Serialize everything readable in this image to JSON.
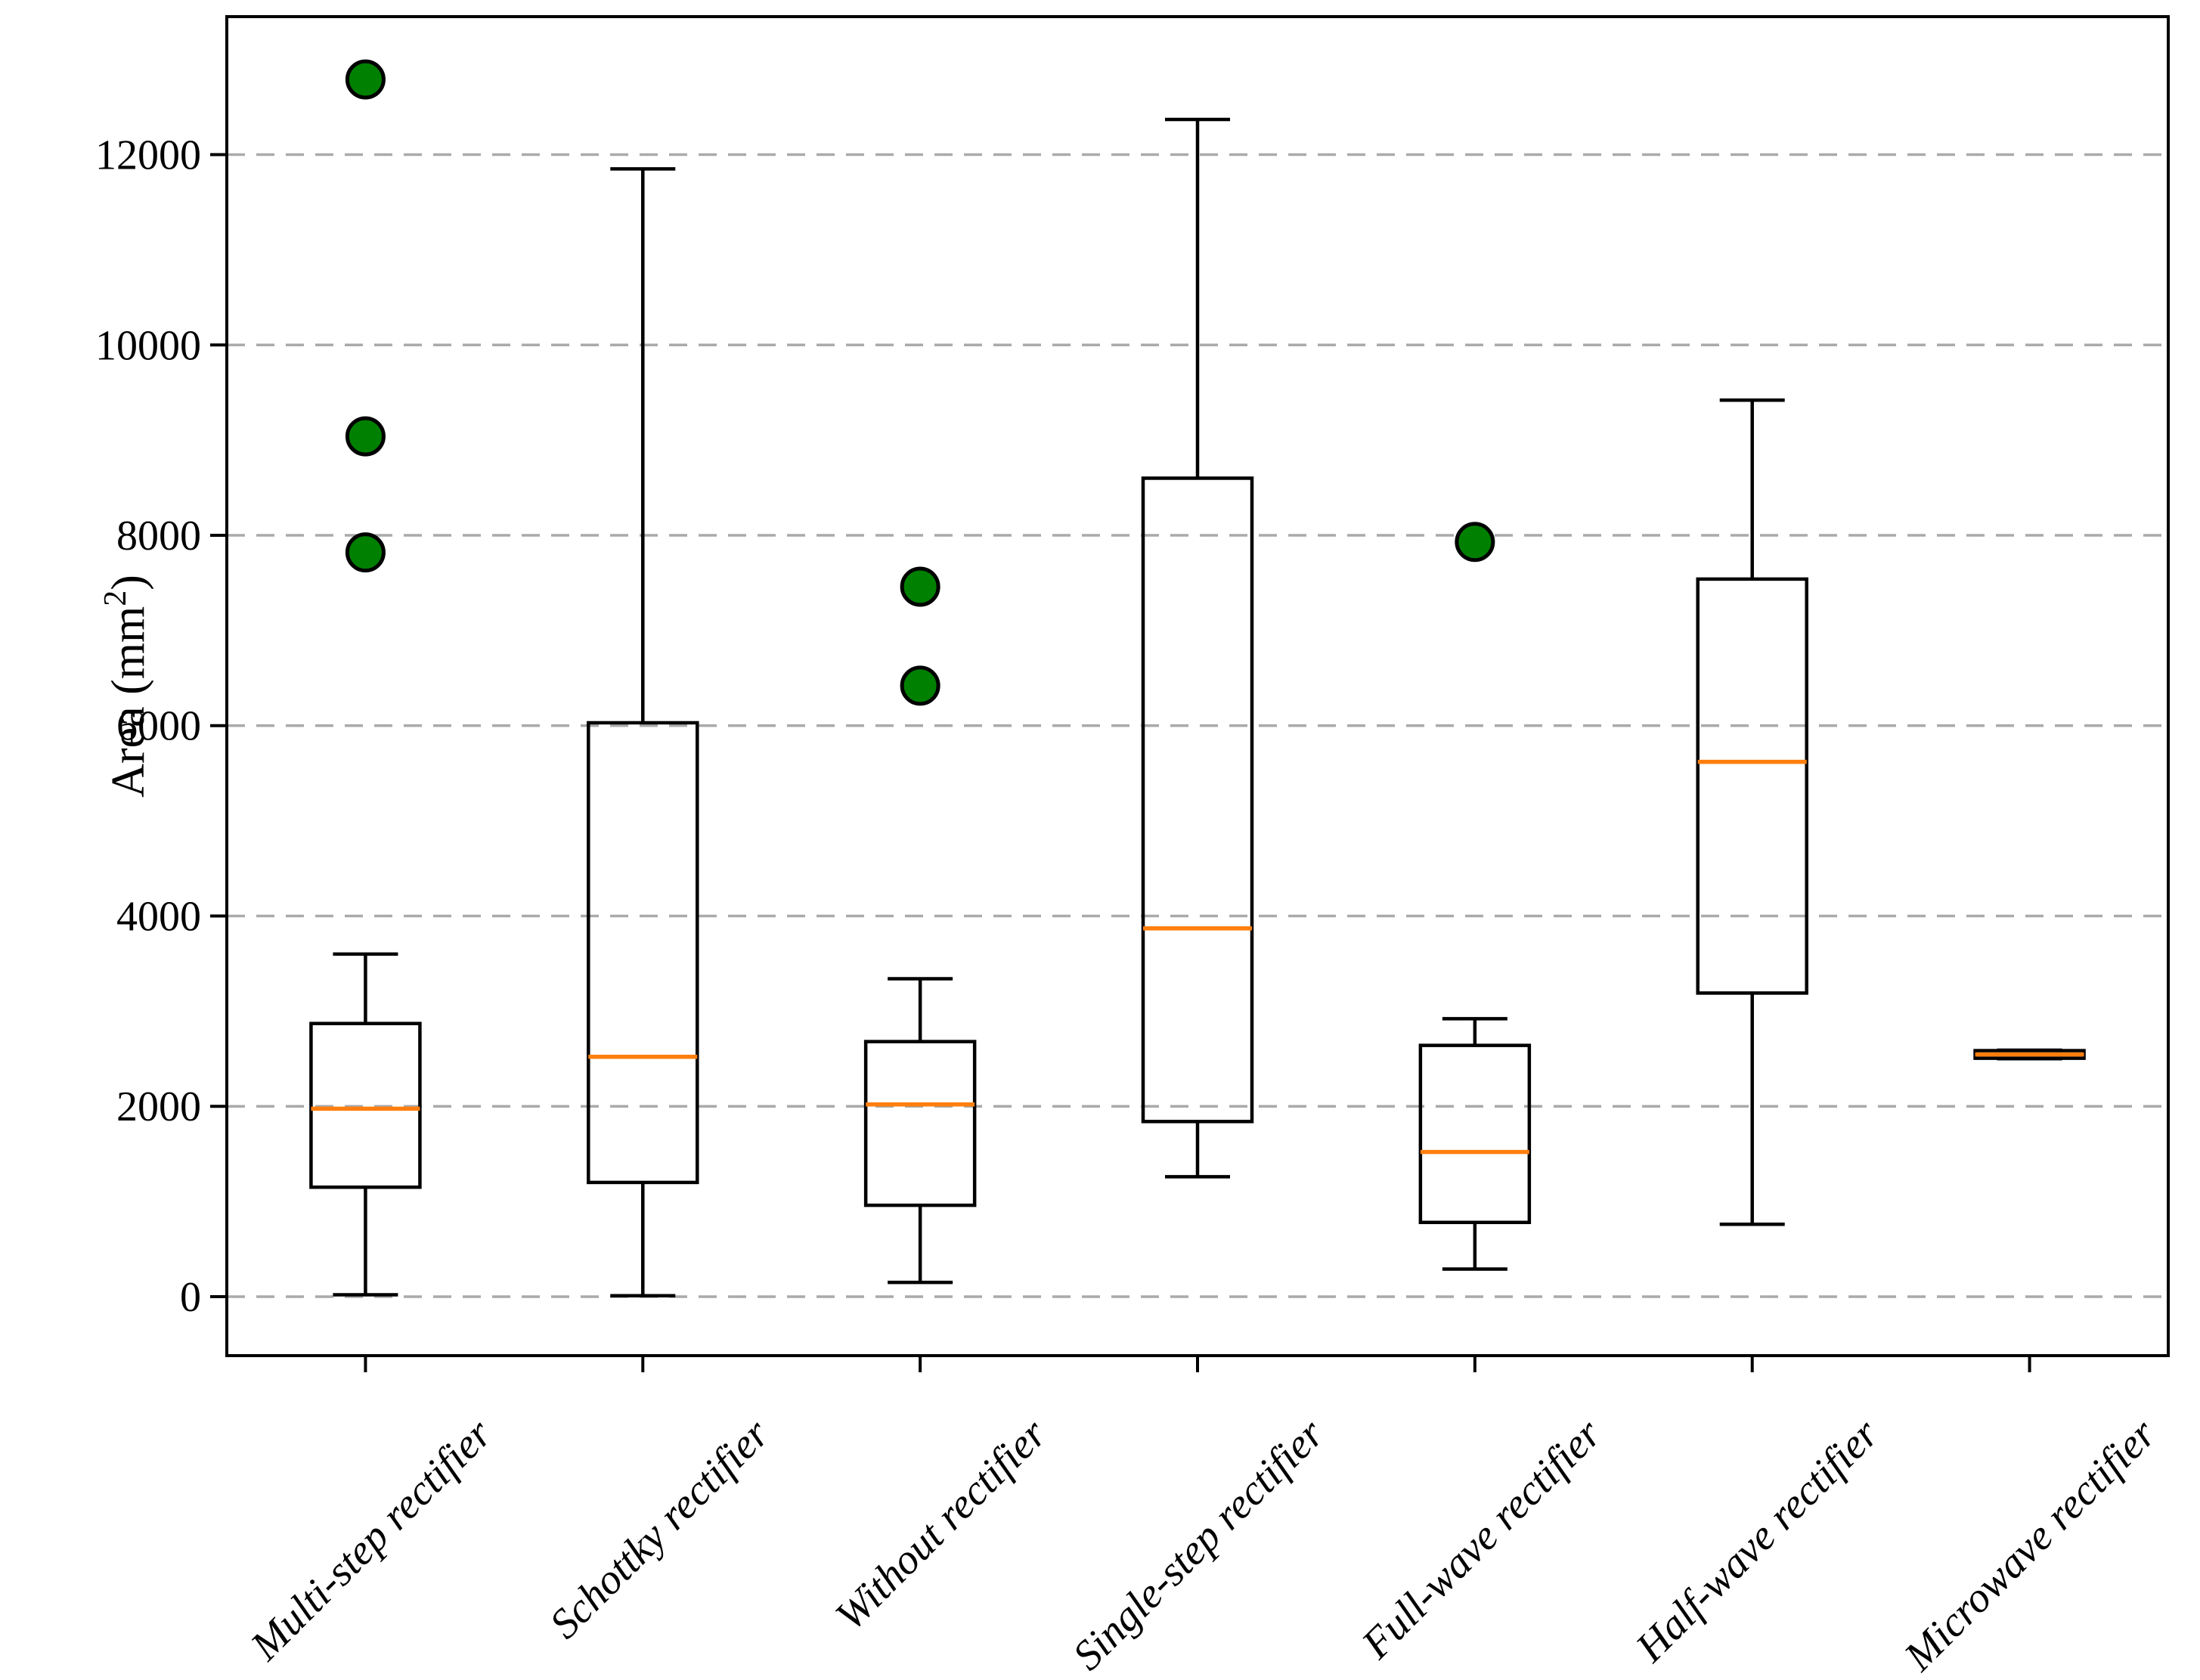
{
  "chart_data": {
    "type": "boxplot",
    "title": "",
    "xlabel": "",
    "ylabel": "Area (mm²)",
    "categories": [
      "Multi-step rectifier",
      "Schottky rectifier",
      "Without rectifier",
      "Single-step rectifier",
      "Full-wave rectifier",
      "Half-wave rectifier",
      "Microwave rectifier"
    ],
    "series": [
      {
        "name": "Multi-step rectifier",
        "whislo": 20,
        "q1": 1150,
        "med": 1975,
        "q3": 2870,
        "whishi": 3600,
        "fliers": [
          12790,
          9040,
          7820
        ]
      },
      {
        "name": "Schottky rectifier",
        "whislo": 10,
        "q1": 1200,
        "med": 2520,
        "q3": 6030,
        "whishi": 11850,
        "fliers": []
      },
      {
        "name": "Without rectifier",
        "whislo": 150,
        "q1": 960,
        "med": 2020,
        "q3": 2680,
        "whishi": 3340,
        "fliers": [
          7460,
          6420
        ]
      },
      {
        "name": "Single-step rectifier",
        "whislo": 1260,
        "q1": 1840,
        "med": 3870,
        "q3": 8600,
        "whishi": 12370,
        "fliers": []
      },
      {
        "name": "Full-wave rectifier",
        "whislo": 290,
        "q1": 780,
        "med": 1520,
        "q3": 2640,
        "whishi": 2920,
        "fliers": [
          7930
        ]
      },
      {
        "name": "Half-wave rectifier",
        "whislo": 760,
        "q1": 3190,
        "med": 5620,
        "q3": 7540,
        "whishi": 9420,
        "fliers": []
      },
      {
        "name": "Microwave rectifier",
        "whislo": 2500,
        "q1": 2505,
        "med": 2545,
        "q3": 2585,
        "whishi": 2590,
        "fliers": []
      }
    ],
    "yticks": [
      0,
      2000,
      4000,
      6000,
      8000,
      10000,
      12000
    ],
    "ytick_labels": [
      "0",
      "2000",
      "4000",
      "6000",
      "8000",
      "10000",
      "12000"
    ],
    "ylim": [
      -620,
      13450
    ],
    "grid": "horizontal-dashed",
    "legend": "none",
    "colors": {
      "median": "#ff7f0e",
      "outlier_fill": "#008000",
      "outlier_edge": "#000000",
      "box_edge": "#000000",
      "grid": "#aaaaaa",
      "background": "#ffffff"
    }
  }
}
